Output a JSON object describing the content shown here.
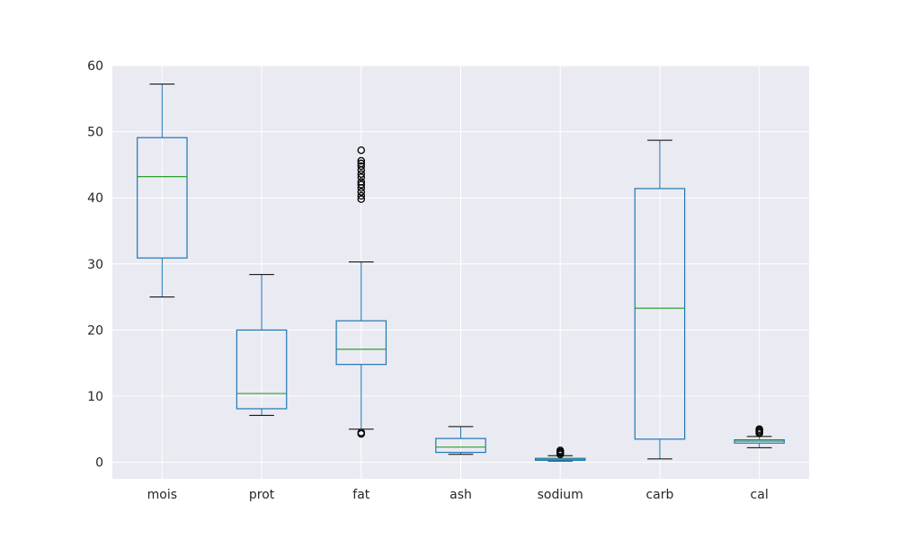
{
  "chart_data": {
    "type": "box",
    "categories": [
      "mois",
      "prot",
      "fat",
      "ash",
      "sodium",
      "carb",
      "cal"
    ],
    "ylim": [
      -2.5,
      60
    ],
    "yticks": [
      0,
      10,
      20,
      30,
      40,
      50,
      60
    ],
    "grid": true,
    "colors": {
      "background": "#eaeaf2",
      "grid": "#ffffff",
      "box": "#1f77b4",
      "median": "#2ca02c",
      "whisker_cap": "#000000",
      "flier": "#000000"
    },
    "series": [
      {
        "category": "mois",
        "whisker_low": 25.0,
        "q1": 30.9,
        "median": 43.2,
        "q3": 49.1,
        "whisker_high": 57.2,
        "fliers": []
      },
      {
        "category": "prot",
        "whisker_low": 7.1,
        "q1": 8.1,
        "median": 10.4,
        "q3": 20.0,
        "whisker_high": 28.4,
        "fliers": []
      },
      {
        "category": "fat",
        "whisker_low": 5.0,
        "q1": 14.8,
        "median": 17.1,
        "q3": 21.4,
        "whisker_high": 30.3,
        "fliers": [
          4.3,
          4.5,
          39.8,
          40.3,
          40.9,
          41.5,
          42.0,
          42.4,
          43.1,
          43.6,
          44.2,
          44.8,
          45.2,
          45.6,
          47.2
        ]
      },
      {
        "category": "ash",
        "whisker_low": 1.2,
        "q1": 1.5,
        "median": 2.3,
        "q3": 3.6,
        "whisker_high": 5.4,
        "fliers": []
      },
      {
        "category": "sodium",
        "whisker_low": 0.2,
        "q1": 0.3,
        "median": 0.45,
        "q3": 0.6,
        "whisker_high": 1.0,
        "fliers": [
          1.2,
          1.4,
          1.6,
          1.8
        ]
      },
      {
        "category": "carb",
        "whisker_low": 0.5,
        "q1": 3.5,
        "median": 23.3,
        "q3": 41.4,
        "whisker_high": 48.7,
        "fliers": []
      },
      {
        "category": "cal",
        "whisker_low": 2.2,
        "q1": 2.9,
        "median": 3.2,
        "q3": 3.4,
        "whisker_high": 3.9,
        "fliers": [
          4.4,
          4.6,
          4.8,
          5.0
        ]
      }
    ]
  }
}
